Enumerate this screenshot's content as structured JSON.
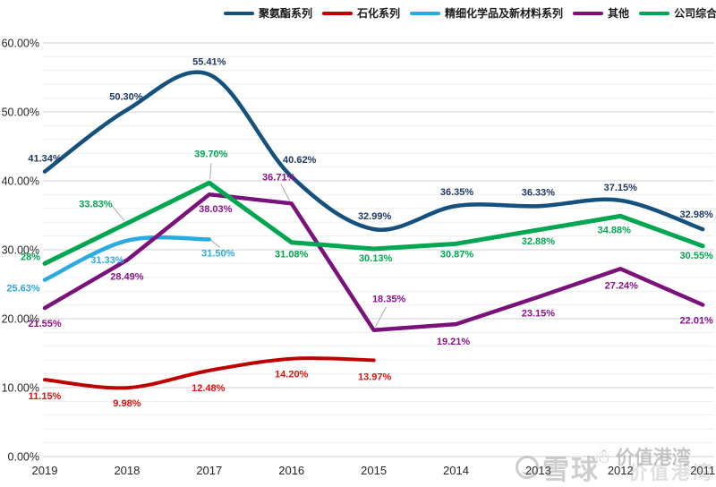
{
  "page": {
    "background": "#ffffff"
  },
  "watermarks": {
    "platform": "雪球",
    "user": "价值港湾"
  },
  "chart_data": {
    "type": "line",
    "title": "",
    "xlabel": "",
    "ylabel": "",
    "categories": [
      "2019",
      "2018",
      "2017",
      "2016",
      "2015",
      "2014",
      "2013",
      "2012",
      "2011"
    ],
    "y_axis": {
      "min": 0,
      "max": 60,
      "major_step": 10,
      "minor_step": 2,
      "tick_labels": [
        "0.00%",
        "10.00%",
        "20.00%",
        "30.00%",
        "40.00%",
        "50.00%",
        "60.00%"
      ]
    },
    "grid": "horizontal",
    "legend_position": "top",
    "series": [
      {
        "name": "聚氨酯系列",
        "color": "#15517E",
        "label_color": "#1F3864",
        "line_width": 4.5,
        "smooth": true,
        "values": [
          41.34,
          50.3,
          55.41,
          40.62,
          32.99,
          36.35,
          36.33,
          37.15,
          32.98
        ],
        "labels": [
          "41.34%",
          "50.30%",
          "55.41%",
          "40.62%",
          "32.99%",
          "36.35%",
          "36.33%",
          "37.15%",
          "32.98%"
        ],
        "label_offsets": [
          [
            0,
            -11
          ],
          [
            -1,
            -11
          ],
          [
            0,
            -11
          ],
          [
            9,
            -15
          ],
          [
            1,
            -11
          ],
          [
            1,
            -12
          ],
          [
            0,
            -12
          ],
          [
            0,
            -11
          ],
          [
            -7,
            -13
          ]
        ],
        "leader_lines": []
      },
      {
        "name": "石化系列",
        "color": "#C00000",
        "label_color": "#E01010",
        "line_width": 4,
        "smooth": true,
        "values": [
          11.15,
          9.98,
          12.48,
          14.2,
          13.97,
          null,
          null,
          null,
          null
        ],
        "labels": [
          "11.15%",
          "9.98%",
          "12.48%",
          "14.20%",
          "13.97%",
          null,
          null,
          null,
          null
        ],
        "label_offsets": [
          [
            0,
            22
          ],
          [
            0,
            21
          ],
          [
            -1,
            23
          ],
          [
            0,
            21
          ],
          [
            1,
            22
          ],
          null,
          null,
          null,
          null
        ],
        "leader_lines": []
      },
      {
        "name": "精细化学品及新材料系列",
        "color": "#29ABE2",
        "label_color": "#29ABE2",
        "line_width": 4.5,
        "smooth": true,
        "values": [
          25.63,
          31.33,
          31.5,
          null,
          null,
          null,
          null,
          null,
          null
        ],
        "labels": [
          "25.63%",
          "31.33%",
          "31.50%",
          null,
          null,
          null,
          null,
          null,
          null
        ],
        "label_offsets": [
          [
            -24,
            13
          ],
          [
            -22,
            25
          ],
          [
            10,
            19
          ],
          null,
          null,
          null,
          null,
          null,
          null
        ],
        "leader_lines": [
          {
            "i": 2,
            "s": [
              2,
              1
            ],
            "e": [
              12,
              9
            ]
          }
        ]
      },
      {
        "name": "其他",
        "color": "#7B117B",
        "label_color": "#8B128B",
        "line_width": 4.5,
        "smooth": false,
        "values": [
          21.55,
          28.49,
          38.03,
          36.71,
          18.35,
          19.21,
          23.15,
          27.24,
          22.01
        ],
        "labels": [
          "21.55%",
          "28.49%",
          "38.03%",
          "36.71%",
          "18.35%",
          "19.21%",
          "23.15%",
          "27.24%",
          "22.01%"
        ],
        "label_offsets": [
          [
            0,
            21
          ],
          [
            0,
            22
          ],
          [
            7,
            20
          ],
          [
            -14,
            -26
          ],
          [
            17,
            -31
          ],
          [
            -3,
            23
          ],
          [
            0,
            22
          ],
          [
            1,
            22
          ],
          [
            -7,
            21
          ]
        ],
        "leader_lines": [
          {
            "i": 3,
            "s": [
              -12,
              -22
            ],
            "e": [
              -2,
              -3
            ]
          },
          {
            "i": 4,
            "s": [
              14,
              -26
            ],
            "e": [
              2,
              -4
            ]
          }
        ]
      },
      {
        "name": "公司综合毛利率 %",
        "color": "#00A650",
        "label_color": "#00A650",
        "line_width": 5,
        "smooth": false,
        "values": [
          28.0,
          33.83,
          39.7,
          31.08,
          30.13,
          30.87,
          32.88,
          34.88,
          30.55
        ],
        "labels": [
          "28%",
          "33.83%",
          "39.70%",
          "31.08%",
          "30.13%",
          "30.87%",
          "32.88%",
          "34.88%",
          "30.55%"
        ],
        "label_offsets": [
          [
            -16,
            -4
          ],
          [
            -35,
            -18
          ],
          [
            2,
            -29
          ],
          [
            0,
            17
          ],
          [
            2,
            14
          ],
          [
            1,
            15
          ],
          [
            0,
            16
          ],
          [
            -7,
            19
          ],
          [
            -7,
            14
          ]
        ],
        "leader_lines": [
          {
            "i": 1,
            "s": [
              -17,
              -20
            ],
            "e": [
              -3,
              -3
            ]
          },
          {
            "i": 2,
            "s": [
              2,
              -22
            ],
            "e": [
              1,
              -4
            ]
          }
        ]
      }
    ]
  }
}
